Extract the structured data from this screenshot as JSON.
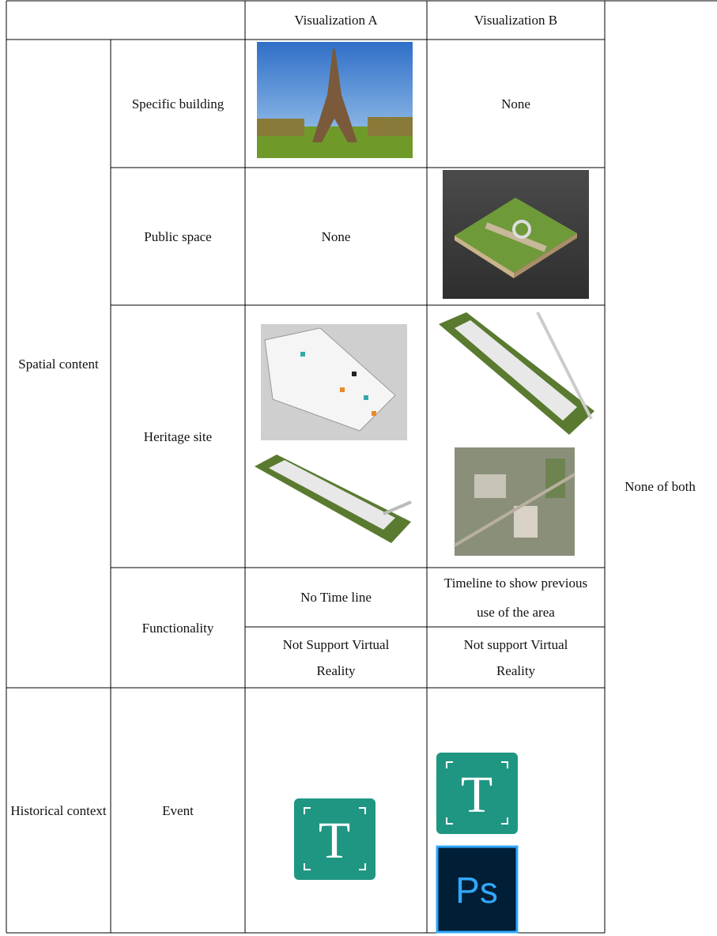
{
  "header": {
    "col_a": "Visualization A",
    "col_b": "Visualization B"
  },
  "groups": [
    {
      "label": "Spatial content",
      "rows": [
        {
          "label": "Specific building",
          "b": "None"
        },
        {
          "label": "Public space",
          "a": "None"
        },
        {
          "label": "Heritage site"
        },
        {
          "label": "Functionality",
          "a": [
            "No Time line",
            "Not Support Virtual Reality"
          ],
          "b": [
            "Timeline to show previous use of the area",
            "Not support Virtual Reality"
          ]
        }
      ]
    },
    {
      "label": "Historical context",
      "rows": [
        {
          "label": "Event"
        }
      ]
    }
  ],
  "side_note": "None of both",
  "icons": {
    "typora": "T",
    "photoshop": "Ps"
  }
}
